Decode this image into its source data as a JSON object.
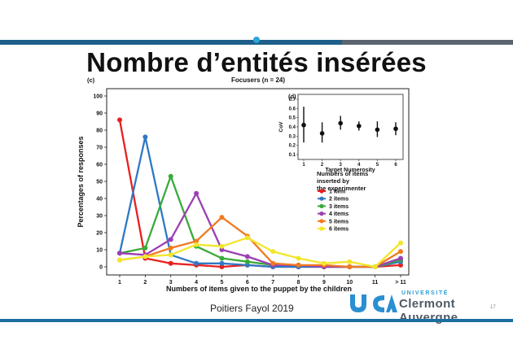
{
  "slide": {
    "title": "Nombre d’entités insérées",
    "footer": "Poitiers Fayol 2019",
    "university_small": "UNIVERSITÉ",
    "university_name": "Clermont Auvergne",
    "page_number": "17"
  },
  "colors": {
    "header_bar": "#1d5f8a",
    "accent": "#2aa6d8"
  },
  "chart_data": [
    {
      "type": "line",
      "panel_label": "(c)",
      "title": "Focusers (n = 24)",
      "xlabel": "Numbers of items given to the puppet by the children",
      "ylabel": "Percentages of responses",
      "categories": [
        "1",
        "2",
        "3",
        "4",
        "5",
        "6",
        "7",
        "8",
        "9",
        "10",
        "11",
        "> 11"
      ],
      "ylim": [
        0,
        100
      ],
      "yticks": [
        0,
        10,
        20,
        30,
        40,
        50,
        60,
        70,
        80,
        90,
        100
      ],
      "grid": false,
      "legend": {
        "title_lines": [
          "Numbers of items",
          "inserted by",
          "the experimenter"
        ],
        "placement": "right"
      },
      "series": [
        {
          "name": "1 item",
          "color": "#e8201f",
          "values": [
            86,
            5,
            2,
            1,
            0,
            1,
            0,
            0,
            0,
            0,
            0,
            1
          ]
        },
        {
          "name": "2 items",
          "color": "#2f78c4",
          "values": [
            8,
            76,
            7,
            2,
            2,
            1,
            0,
            0,
            0,
            0,
            0,
            3
          ]
        },
        {
          "name": "3 items",
          "color": "#3aaa3a",
          "values": [
            8,
            11,
            53,
            12,
            5,
            3,
            1,
            1,
            0,
            0,
            0,
            4
          ]
        },
        {
          "name": "4 items",
          "color": "#9b3fb5",
          "values": [
            8,
            7,
            16,
            43,
            10,
            6,
            1,
            1,
            0,
            0,
            0,
            5
          ]
        },
        {
          "name": "5 items",
          "color": "#f07b22",
          "values": [
            4,
            6,
            11,
            15,
            29,
            18,
            2,
            1,
            1,
            0,
            0,
            9
          ]
        },
        {
          "name": "6 items",
          "color": "#f2e62a",
          "values": [
            4,
            6,
            7,
            13,
            12,
            17,
            9,
            5,
            2,
            3,
            0,
            14
          ]
        }
      ]
    },
    {
      "type": "scatter",
      "panel_label": "(d)",
      "xlabel": "Target Numerosity",
      "ylabel": "CoV",
      "categories": [
        "1",
        "2",
        "3",
        "4",
        "5",
        "6"
      ],
      "ylim": [
        0.1,
        0.7
      ],
      "yticks": [
        0.1,
        0.2,
        0.3,
        0.4,
        0.5,
        0.6,
        0.7
      ],
      "series": [
        {
          "values": [
            0.42,
            0.33,
            0.44,
            0.41,
            0.37,
            0.38
          ],
          "error_low": [
            0.23,
            0.23,
            0.37,
            0.36,
            0.29,
            0.31
          ],
          "error_high": [
            0.62,
            0.45,
            0.52,
            0.46,
            0.46,
            0.45
          ]
        }
      ]
    }
  ]
}
